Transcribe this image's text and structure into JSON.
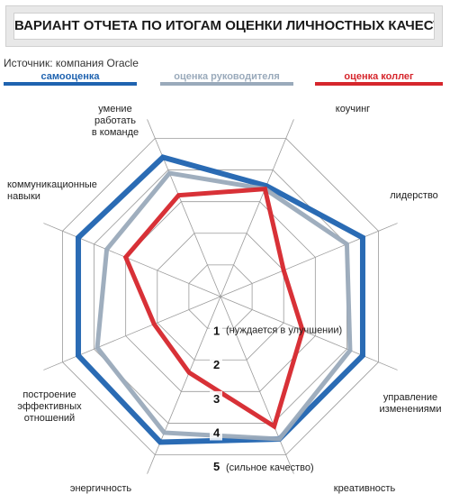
{
  "title": "ВАРИАНТ ОТЧЕТА ПО ИТОГАМ ОЦЕНКИ ЛИЧНОСТНЫХ КАЧЕСТВ",
  "source": "Источник: компания Oracle",
  "chart_data": {
    "type": "radar",
    "axes": [
      "коучинг",
      "лидерство",
      "управление изменениями",
      "креативность",
      "энергичность",
      "построение эффективных отношений",
      "коммуникационные навыки",
      "умение работать в команде"
    ],
    "scale": {
      "min": 0,
      "max": 5,
      "ticks": [
        {
          "value": 1,
          "label": "1",
          "note": "(нуждается в улучшении)"
        },
        {
          "value": 2,
          "label": "2",
          "note": ""
        },
        {
          "value": 3,
          "label": "3",
          "note": ""
        },
        {
          "value": 4,
          "label": "4",
          "note": ""
        },
        {
          "value": 5,
          "label": "5",
          "note": "(сильное качество)"
        }
      ]
    },
    "series": [
      {
        "name": "самооценка",
        "color": "#1f63b0",
        "values": [
          3.5,
          4.5,
          4.5,
          4.5,
          4.6,
          4.5,
          4.5,
          4.4
        ]
      },
      {
        "name": "оценка руководителя",
        "color": "#9aaabb",
        "values": [
          3.4,
          4.0,
          4.1,
          4.5,
          4.3,
          3.9,
          3.6,
          3.9
        ]
      },
      {
        "name": "оценка коллег",
        "color": "#d6262c",
        "values": [
          3.4,
          2.0,
          2.6,
          4.1,
          2.4,
          2.1,
          3.0,
          3.2
        ]
      }
    ]
  }
}
